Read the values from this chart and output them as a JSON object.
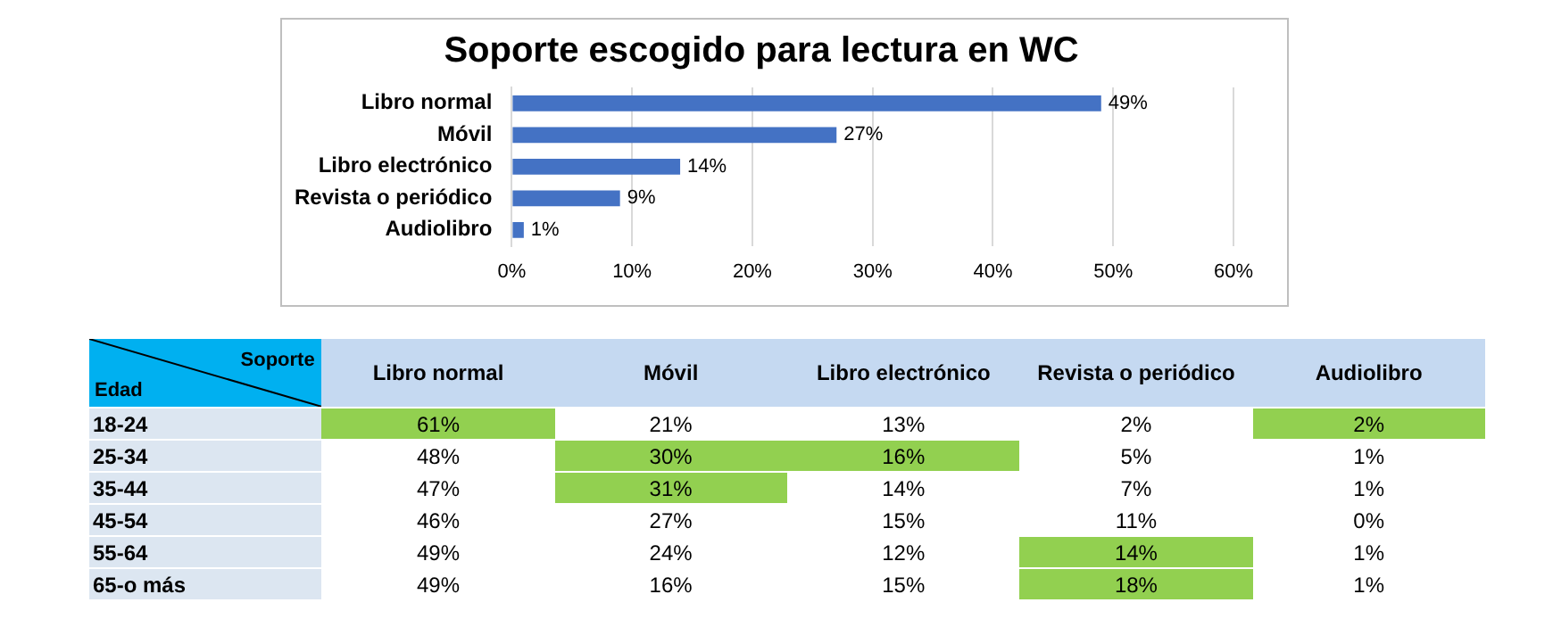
{
  "chart_data": [
    {
      "type": "bar",
      "orientation": "horizontal",
      "title": "Soporte escogido para lectura en WC",
      "categories": [
        "Libro normal",
        "Móvil",
        "Libro electrónico",
        "Revista o periódico",
        "Audiolibro"
      ],
      "values": [
        49,
        27,
        14,
        9,
        1
      ],
      "color": "#4472c4",
      "value_labels": [
        "49%",
        "27%",
        "14%",
        "9%",
        "1%"
      ],
      "xlim": [
        0,
        60
      ],
      "xticks": [
        {
          "value": 0,
          "label": "0%"
        },
        {
          "value": 10,
          "label": "10%"
        },
        {
          "value": 20,
          "label": "20%"
        },
        {
          "value": 30,
          "label": "30%"
        },
        {
          "value": 40,
          "label": "40%"
        },
        {
          "value": 50,
          "label": "50%"
        },
        {
          "value": 60,
          "label": "60%"
        }
      ],
      "grid": "x",
      "legend": false
    },
    {
      "type": "heatmap",
      "xlabel": "Soporte",
      "ylabel": "Edad",
      "categories": [
        "Libro normal",
        "Móvil",
        "Libro electrónico",
        "Revista o periódico",
        "Audiolibro"
      ],
      "y_categories": [
        "18-24",
        "25-34",
        "35-44",
        "45-54",
        "55-64",
        "65-o más"
      ],
      "cells": [
        [
          61,
          21,
          13,
          2,
          2
        ],
        [
          48,
          30,
          16,
          5,
          1
        ],
        [
          47,
          31,
          14,
          7,
          1
        ],
        [
          46,
          27,
          15,
          11,
          0
        ],
        [
          49,
          24,
          12,
          14,
          1
        ],
        [
          49,
          16,
          15,
          18,
          1
        ]
      ],
      "cell_labels": [
        [
          "61%",
          "21%",
          "13%",
          "2%",
          "2%"
        ],
        [
          "48%",
          "30%",
          "16%",
          "5%",
          "1%"
        ],
        [
          "47%",
          "31%",
          "14%",
          "7%",
          "1%"
        ],
        [
          "46%",
          "27%",
          "15%",
          "11%",
          "0%"
        ],
        [
          "49%",
          "24%",
          "12%",
          "14%",
          "1%"
        ],
        [
          "49%",
          "16%",
          "15%",
          "18%",
          "1%"
        ]
      ],
      "colors": [
        [
          "#92d050",
          "#ffffff",
          "#ffffff",
          "#ffffff",
          "#92d050"
        ],
        [
          "#ffffff",
          "#92d050",
          "#92d050",
          "#ffffff",
          "#ffffff"
        ],
        [
          "#ffffff",
          "#92d050",
          "#ffffff",
          "#ffffff",
          "#ffffff"
        ],
        [
          "#ffffff",
          "#ffffff",
          "#ffffff",
          "#ffffff",
          "#ffffff"
        ],
        [
          "#ffffff",
          "#ffffff",
          "#ffffff",
          "#92d050",
          "#ffffff"
        ],
        [
          "#ffffff",
          "#ffffff",
          "#ffffff",
          "#92d050",
          "#ffffff"
        ]
      ]
    }
  ]
}
